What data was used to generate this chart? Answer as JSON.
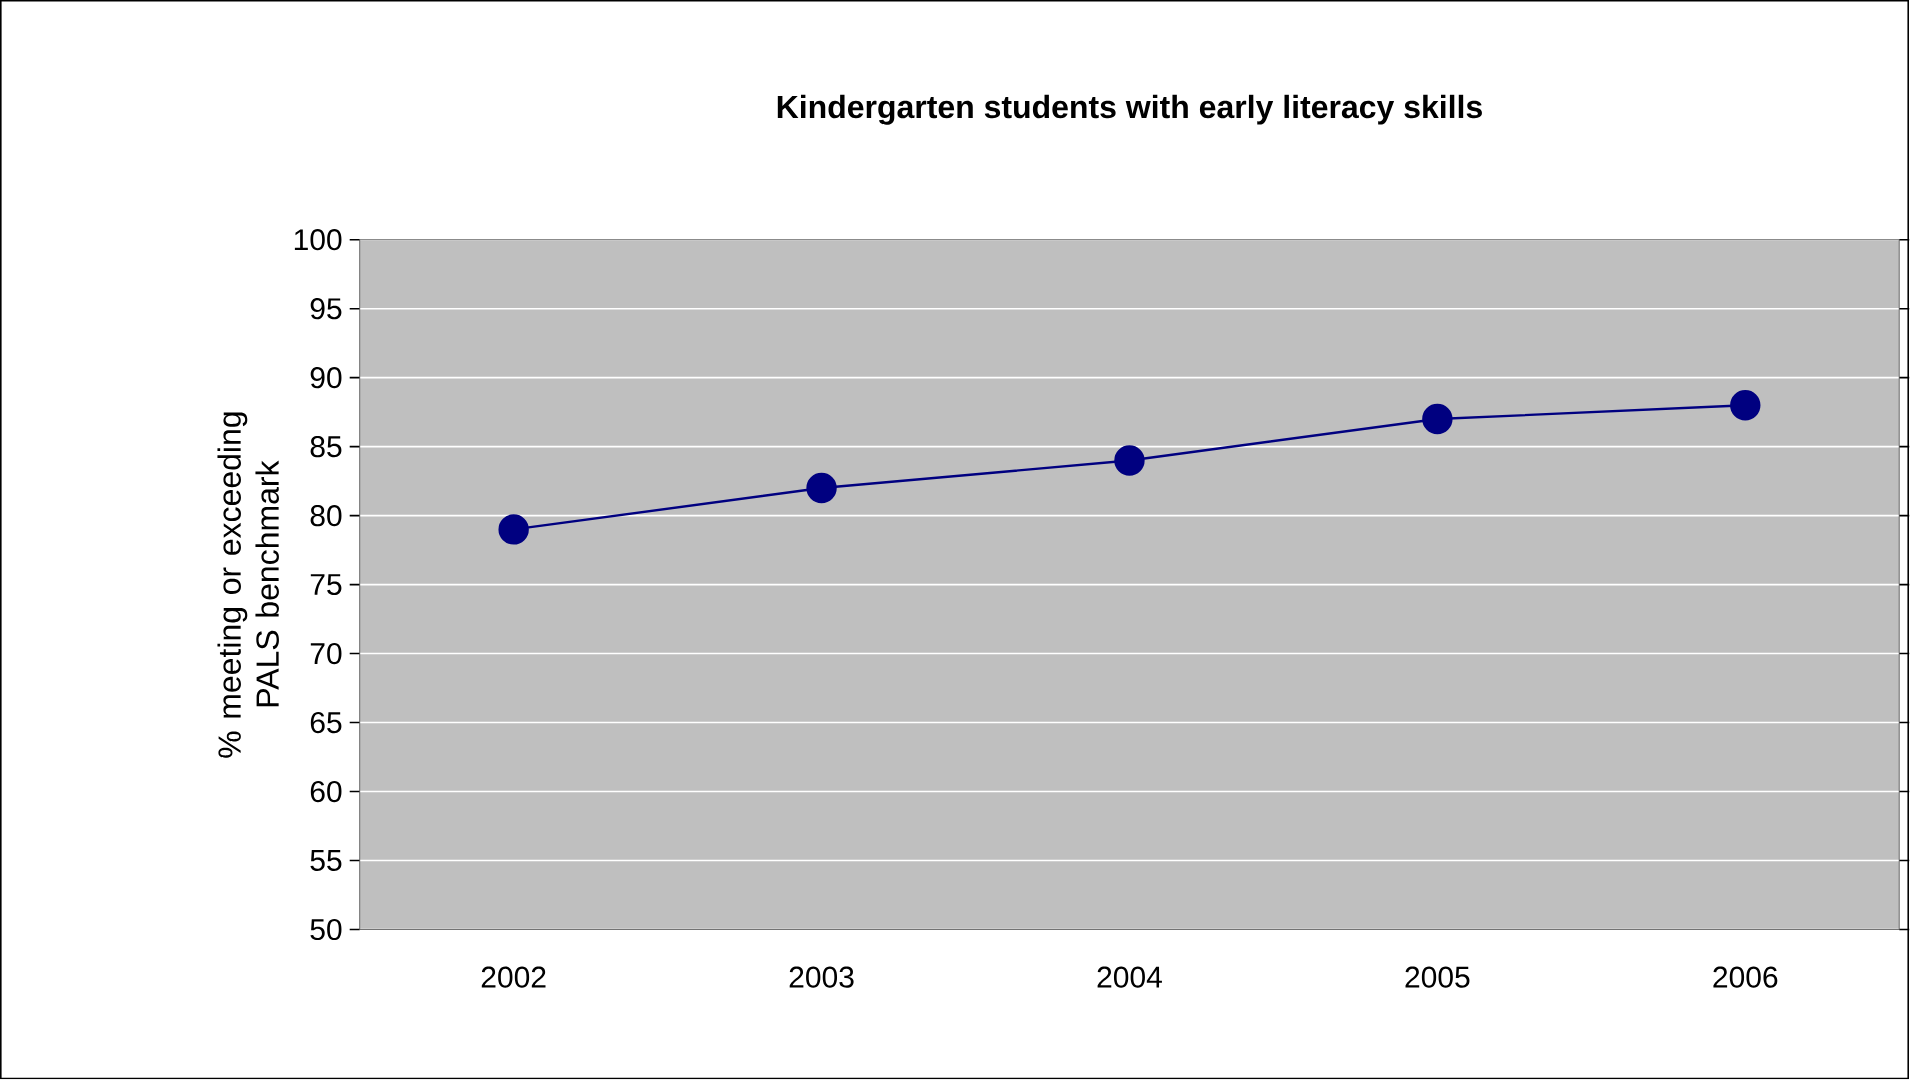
{
  "chart_data": {
    "type": "line",
    "title": "Kindergarten students with early literacy skills",
    "ylabel": "% meeting or exceeding PALS benchmark",
    "categories": [
      "2002",
      "2003",
      "2004",
      "2005",
      "2006"
    ],
    "series": [
      {
        "color": "#000080",
        "values": [
          79,
          82,
          84,
          87,
          88
        ]
      }
    ],
    "ylim": [
      50,
      100
    ],
    "yticks": [
      50,
      55,
      60,
      65,
      70,
      75,
      80,
      85,
      90,
      95,
      100
    ],
    "grid": "y",
    "marker": "circle",
    "line_style": "solid"
  }
}
